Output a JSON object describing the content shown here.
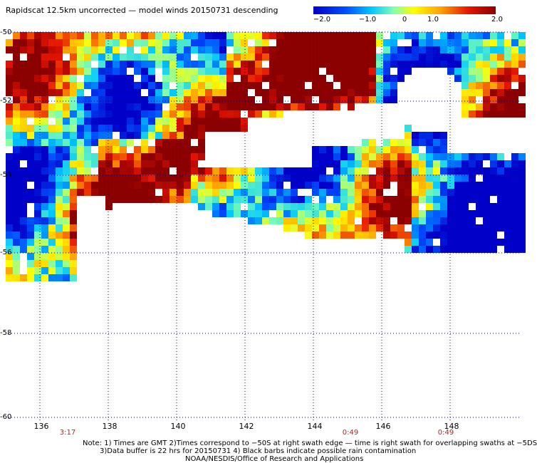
{
  "title": "Rapidscat 12.5km uncorrected — model winds 20150731 descending",
  "colorbar": {
    "labels": [
      "−2.0",
      "−1.0",
      "0",
      "1.0",
      "2.0"
    ],
    "min": -2.0,
    "max": 2.0
  },
  "map": {
    "lon_range": [
      135,
      150
    ],
    "lat_range": [
      -60,
      -50
    ],
    "x_ticks": [
      "136",
      "138",
      "140",
      "142",
      "144",
      "146",
      "148"
    ],
    "y_ticks": [
      "-50",
      "-52",
      "-54",
      "-56",
      "-58",
      "-60"
    ],
    "swath_times": [
      {
        "label": "3:17",
        "lon": 136.8
      },
      {
        "label": "0:49",
        "lon": 144.8
      },
      {
        "label": "0:49",
        "lon": 147.6
      }
    ],
    "colors": {
      "background": "#ffffff",
      "grid": "#000080",
      "min_color": "#0000c8",
      "max_color": "#8b0000"
    }
  },
  "notes": {
    "line1": "Note: 1) Times are GMT 2)Times correspond to −50S at right swath edge — time is right swath for overlapping swaths at −5DS",
    "line2": "3)Data buffer is 22 hrs for 20150731 4) Black barbs indicate possible rain contamination",
    "line3": "NOAA/NESDIS/Office of Research and Applications"
  }
}
